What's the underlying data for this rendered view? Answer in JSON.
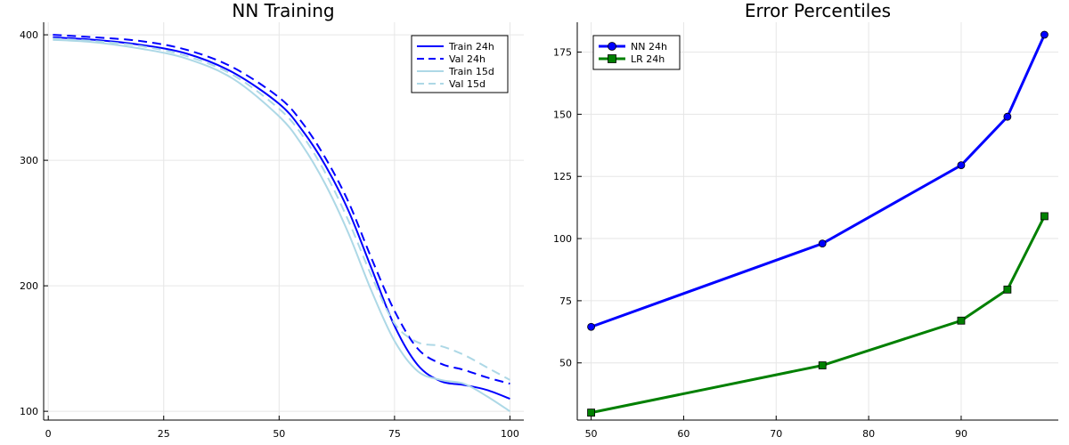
{
  "chart_data": [
    {
      "type": "line",
      "title": "NN Training",
      "xlabel": "",
      "ylabel": "",
      "xlim": [
        -1,
        103
      ],
      "ylim": [
        93,
        410
      ],
      "xticks": [
        0,
        25,
        50,
        75,
        100
      ],
      "yticks": [
        100,
        200,
        300,
        400
      ],
      "grid": true,
      "legend_position": "top-right",
      "series": [
        {
          "name": "Train 24h",
          "color": "#0000ff",
          "style": "solid",
          "x": [
            1,
            10,
            20,
            30,
            40,
            50,
            55,
            60,
            65,
            70,
            75,
            80,
            85,
            90,
            95,
            100
          ],
          "y": [
            398,
            396,
            392,
            385,
            370,
            345,
            324,
            296,
            260,
            214,
            168,
            137,
            124,
            121,
            117,
            110
          ]
        },
        {
          "name": "Val 24h",
          "color": "#0000ff",
          "style": "dashed",
          "x": [
            1,
            10,
            20,
            30,
            40,
            50,
            55,
            60,
            65,
            70,
            75,
            80,
            85,
            90,
            95,
            100
          ],
          "y": [
            400,
            398,
            395,
            388,
            374,
            350,
            330,
            302,
            267,
            222,
            180,
            150,
            138,
            133,
            127,
            122
          ]
        },
        {
          "name": "Train 15d",
          "color": "#add8e6",
          "style": "solid",
          "x": [
            1,
            10,
            20,
            30,
            40,
            50,
            55,
            60,
            65,
            70,
            75,
            80,
            85,
            90,
            95,
            100
          ],
          "y": [
            396,
            394,
            389,
            381,
            365,
            335,
            312,
            281,
            242,
            196,
            156,
            132,
            125,
            122,
            112,
            100
          ]
        },
        {
          "name": "Val 15d",
          "color": "#add8e6",
          "style": "dashed",
          "x": [
            1,
            10,
            20,
            30,
            40,
            50,
            55,
            60,
            65,
            70,
            75,
            80,
            85,
            90,
            95,
            100
          ],
          "y": [
            397,
            395,
            391,
            383,
            368,
            341,
            320,
            290,
            252,
            208,
            170,
            155,
            152,
            145,
            135,
            125
          ]
        }
      ]
    },
    {
      "type": "line",
      "title": "Error Percentiles",
      "xlabel": "",
      "ylabel": "",
      "xlim": [
        48.5,
        100.5
      ],
      "ylim": [
        27,
        187
      ],
      "xticks": [
        50,
        60,
        70,
        80,
        90
      ],
      "yticks": [
        50,
        75,
        100,
        125,
        150,
        175
      ],
      "grid": true,
      "legend_position": "top-left",
      "series": [
        {
          "name": "NN 24h",
          "color": "#0000ff",
          "marker": "circle",
          "x": [
            50,
            75,
            90,
            95,
            99
          ],
          "y": [
            64.5,
            98,
            129.5,
            149,
            182
          ]
        },
        {
          "name": "LR 24h",
          "color": "#008000",
          "marker": "square",
          "x": [
            50,
            75,
            90,
            95,
            99
          ],
          "y": [
            30,
            49,
            67,
            79.5,
            109
          ]
        }
      ]
    }
  ]
}
